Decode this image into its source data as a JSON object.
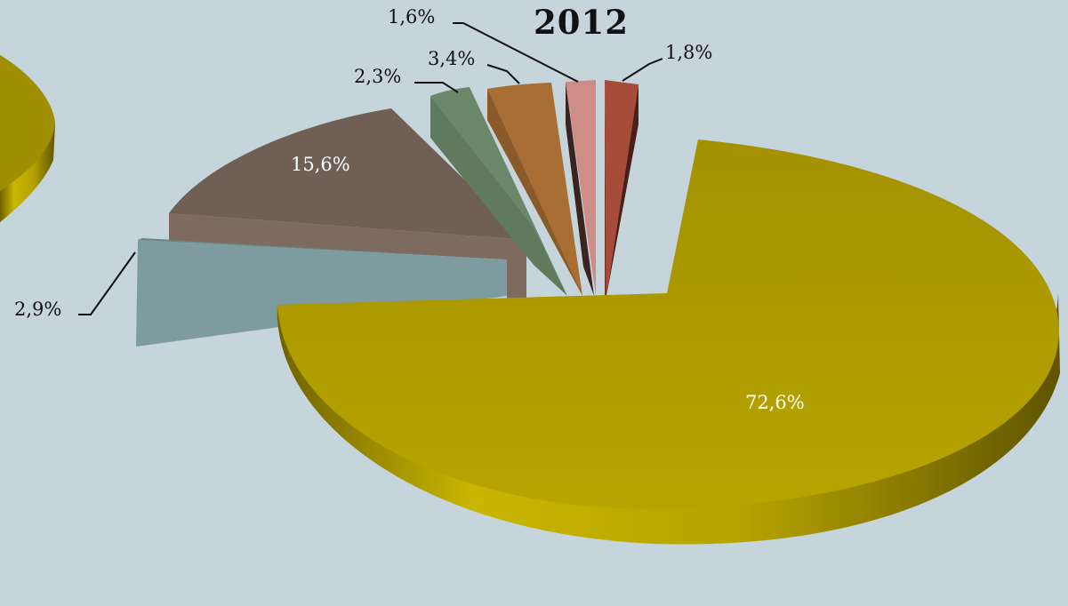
{
  "chart_data": {
    "type": "pie",
    "title": "2012",
    "slices": [
      {
        "label": "72,6%",
        "value": 72.6,
        "color": "#b3a000"
      },
      {
        "label": "2,9%",
        "value": 2.9,
        "color": "#7c999c"
      },
      {
        "label": "15,6%",
        "value": 15.6,
        "color": "#6f5f55"
      },
      {
        "label": "2,3%",
        "value": 2.3,
        "color": "#6b8769"
      },
      {
        "label": "3,4%",
        "value": 3.4,
        "color": "#a86e34"
      },
      {
        "label": "1,6%",
        "value": 1.6,
        "color": "#cf8d88"
      },
      {
        "label": "1,8%",
        "value": 1.8,
        "color": "#a64c38"
      }
    ],
    "legend": "none",
    "grid": false
  }
}
